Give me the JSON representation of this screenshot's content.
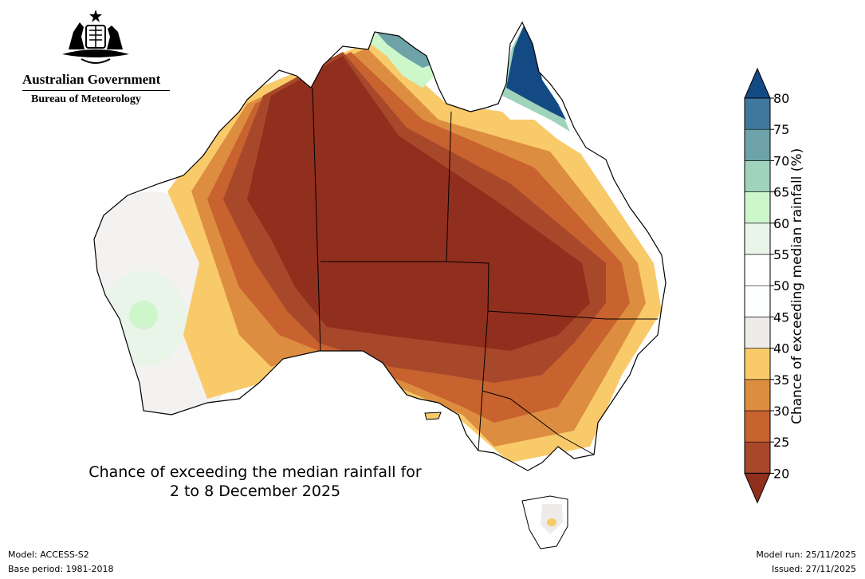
{
  "header": {
    "government": "Australian Government",
    "agency": "Bureau of Meteorology"
  },
  "map": {
    "title_line1": "Chance of exceeding the median rainfall for",
    "title_line2": "2 to 8 December 2025"
  },
  "colorbar": {
    "label": "Chance of exceeding median rainfall (%)",
    "ticks": [
      "20",
      "25",
      "30",
      "35",
      "40",
      "45",
      "50",
      "55",
      "60",
      "65",
      "70",
      "75",
      "80"
    ],
    "colors": [
      "#a8482b",
      "#c8622e",
      "#dd8d40",
      "#f9ca6a",
      "#efebe8",
      "#fdfefe",
      "#ffffff",
      "#eaf5ea",
      "#cdf6cb",
      "#9fd3bb",
      "#6ca2a8",
      "#40789d"
    ],
    "under_color": "#902f1d",
    "over_color": "#134a83"
  },
  "footer": {
    "model": "Model: ACCESS-S2",
    "base_period": "Base period: 1981-2018",
    "model_run": "Model run: 25/11/2025",
    "issued": "Issued: 27/11/2025"
  }
}
